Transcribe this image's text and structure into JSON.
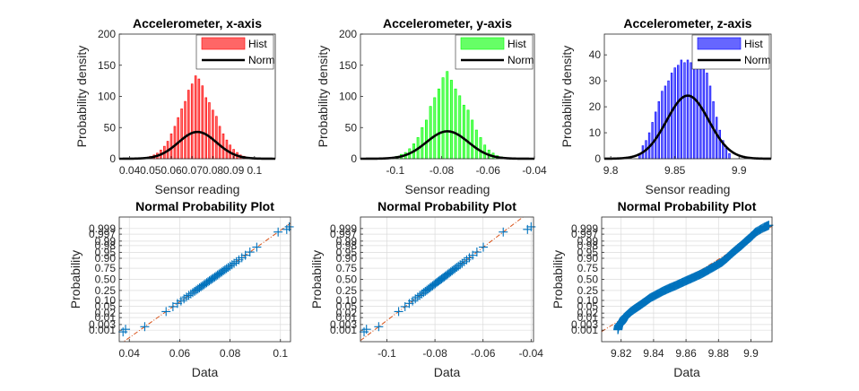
{
  "colors": {
    "x_hist": "#ff0000",
    "y_hist": "#00ff00",
    "z_hist": "#0000ff",
    "norm": "#000000",
    "probplot_marker": "#0072bd",
    "probplot_ref": "#d95319",
    "grid": "#dcdcdc",
    "axes": "#262626"
  },
  "chart_data": [
    {
      "type": "bar",
      "title": "Accelerometer, x-axis",
      "xlabel": "Sensor reading",
      "ylabel": "Probability density",
      "xlim": [
        0.035,
        0.11
      ],
      "ylim": [
        0,
        200
      ],
      "xticks": [
        0.04,
        0.05,
        0.06,
        0.07,
        0.08,
        0.09,
        0.1
      ],
      "xtick_labels": [
        "0.04",
        "0.05",
        "0.06",
        "0.07",
        "0.08",
        "0.09",
        "0.1"
      ],
      "yticks": [
        0,
        50,
        100,
        150,
        200
      ],
      "ytick_labels": [
        "0",
        "50",
        "100",
        "150",
        "200"
      ],
      "grid": false,
      "legend": {
        "placement": "top-right",
        "entries": [
          "Hist",
          "Norm"
        ]
      },
      "hist": {
        "bin_width": 0.00167,
        "centers": [
          0.05,
          0.0517,
          0.0533,
          0.055,
          0.0567,
          0.0583,
          0.06,
          0.0617,
          0.0633,
          0.065,
          0.0667,
          0.0683,
          0.07,
          0.0717,
          0.0733,
          0.075,
          0.0767,
          0.0783,
          0.08,
          0.0817,
          0.0833,
          0.085,
          0.0867,
          0.0883,
          0.09,
          0.0917,
          0.0933,
          0.095,
          0.0967
        ],
        "values": [
          4,
          6,
          9,
          14,
          20,
          28,
          40,
          52,
          66,
          80,
          92,
          110,
          120,
          133,
          128,
          117,
          98,
          90,
          78,
          68,
          52,
          40,
          30,
          22,
          15,
          10,
          6,
          4,
          2
        ]
      },
      "norm": {
        "mean": 0.0726,
        "sd": 0.0092,
        "peak": 43
      }
    },
    {
      "type": "bar",
      "title": "Accelerometer, y-axis",
      "xlabel": "Sensor reading",
      "ylabel": "Probability density",
      "xlim": [
        -0.115,
        -0.04
      ],
      "ylim": [
        0,
        200
      ],
      "xticks": [
        -0.1,
        -0.08,
        -0.06,
        -0.04
      ],
      "xtick_labels": [
        "-0.1",
        "-0.08",
        "-0.06",
        "-0.04"
      ],
      "yticks": [
        0,
        50,
        100,
        150,
        200
      ],
      "ytick_labels": [
        "0",
        "50",
        "100",
        "150",
        "200"
      ],
      "grid": false,
      "legend": {
        "placement": "top-right",
        "entries": [
          "Hist",
          "Norm"
        ]
      },
      "hist": {
        "bin_width": 0.0018,
        "centers": [
          -0.101,
          -0.0992,
          -0.0974,
          -0.0956,
          -0.0938,
          -0.092,
          -0.0902,
          -0.0884,
          -0.0866,
          -0.0848,
          -0.083,
          -0.0812,
          -0.0794,
          -0.0776,
          -0.0758,
          -0.074,
          -0.0722,
          -0.0704,
          -0.0686,
          -0.0668,
          -0.065,
          -0.0632,
          -0.0614,
          -0.0596,
          -0.0578,
          -0.056,
          -0.0542
        ],
        "values": [
          2,
          4,
          7,
          10,
          16,
          24,
          34,
          50,
          62,
          84,
          98,
          112,
          130,
          140,
          126,
          112,
          101,
          86,
          78,
          62,
          46,
          34,
          22,
          14,
          9,
          5,
          3
        ]
      },
      "norm": {
        "mean": -0.0775,
        "sd": 0.009,
        "peak": 44
      }
    },
    {
      "type": "bar",
      "title": "Accelerometer, z-axis",
      "xlabel": "Sensor reading",
      "ylabel": "Probability density",
      "xlim": [
        9.795,
        9.925
      ],
      "ylim": [
        0,
        48
      ],
      "xticks": [
        9.8,
        9.85,
        9.9
      ],
      "xtick_labels": [
        "9.8",
        "9.85",
        "9.9"
      ],
      "yticks": [
        0,
        10,
        20,
        30,
        40
      ],
      "ytick_labels": [
        "0",
        "10",
        "20",
        "30",
        "40"
      ],
      "grid": false,
      "legend": {
        "placement": "top-right",
        "entries": [
          "Hist",
          "Norm"
        ]
      },
      "hist": {
        "bin_width": 0.0025,
        "centers": [
          9.8225,
          9.825,
          9.8275,
          9.83,
          9.8325,
          9.835,
          9.8375,
          9.84,
          9.8425,
          9.845,
          9.8475,
          9.85,
          9.8525,
          9.855,
          9.8575,
          9.86,
          9.8625,
          9.865,
          9.8675,
          9.87,
          9.8725,
          9.875,
          9.8775,
          9.88,
          9.8825,
          9.885,
          9.8875,
          9.89,
          9.8925
        ],
        "values": [
          2,
          5,
          7,
          10,
          14,
          18,
          22,
          26,
          28,
          30,
          33,
          35,
          36,
          38,
          37,
          38,
          37,
          39,
          37,
          36,
          35,
          33,
          28,
          22,
          16,
          11,
          7,
          4,
          2
        ]
      },
      "norm": {
        "mean": 9.86,
        "sd": 0.0164,
        "peak": 24.3
      }
    },
    {
      "type": "scatter",
      "title": "Normal Probability Plot",
      "xlabel": "Data",
      "ylabel": "Probability",
      "xlim": [
        0.036,
        0.104
      ],
      "xticks": [
        0.04,
        0.06,
        0.08,
        0.1
      ],
      "xtick_labels": [
        "0.04",
        "0.06",
        "0.08",
        "0.1"
      ],
      "probabilities": [
        0.001,
        0.003,
        0.01,
        0.02,
        0.05,
        0.1,
        0.25,
        0.5,
        0.75,
        0.9,
        0.95,
        0.98,
        0.99,
        0.997,
        0.999
      ],
      "probability_labels": [
        "0.001",
        "0.003",
        "0.01",
        "0.02",
        "0.05",
        "0.10",
        "0.25",
        "0.50",
        "0.75",
        "0.90",
        "0.95",
        "0.98",
        "0.99",
        "0.997",
        "0.999"
      ],
      "grid": true,
      "mean": 0.0726,
      "sd": 0.0092,
      "extremes": [
        0.0375,
        0.0385,
        0.1025,
        0.1035
      ]
    },
    {
      "type": "scatter",
      "title": "Normal Probability Plot",
      "xlabel": "Data",
      "ylabel": "Probability",
      "xlim": [
        -0.111,
        -0.039
      ],
      "xticks": [
        -0.1,
        -0.08,
        -0.06,
        -0.04
      ],
      "xtick_labels": [
        "-0.1",
        "-0.08",
        "-0.06",
        "-0.04"
      ],
      "probabilities": [
        0.001,
        0.003,
        0.01,
        0.02,
        0.05,
        0.1,
        0.25,
        0.5,
        0.75,
        0.9,
        0.95,
        0.98,
        0.99,
        0.997,
        0.999
      ],
      "probability_labels": [
        "0.001",
        "0.003",
        "0.01",
        "0.02",
        "0.05",
        "0.10",
        "0.25",
        "0.50",
        "0.75",
        "0.90",
        "0.95",
        "0.98",
        "0.99",
        "0.997",
        "0.999"
      ],
      "grid": true,
      "mean": -0.0775,
      "sd": 0.009,
      "extremes": [
        -0.1095,
        -0.1085,
        -0.0415,
        -0.04
      ]
    },
    {
      "type": "scatter",
      "title": "Normal Probability Plot",
      "xlabel": "Data",
      "ylabel": "Probability",
      "xlim": [
        9.808,
        9.913
      ],
      "xticks": [
        9.82,
        9.84,
        9.86,
        9.88,
        9.9
      ],
      "xtick_labels": [
        "9.82",
        "9.84",
        "9.86",
        "9.88",
        "9.9"
      ],
      "probabilities": [
        0.001,
        0.003,
        0.01,
        0.02,
        0.05,
        0.1,
        0.25,
        0.5,
        0.75,
        0.9,
        0.95,
        0.98,
        0.99,
        0.997,
        0.999
      ],
      "probability_labels": [
        "0.001",
        "0.003",
        "0.01",
        "0.02",
        "0.05",
        "0.10",
        "0.25",
        "0.50",
        "0.75",
        "0.90",
        "0.95",
        "0.98",
        "0.99",
        "0.997",
        "0.999"
      ],
      "grid": true,
      "mean": 9.86,
      "sd": 0.0164,
      "points": [
        [
          9.818,
          0.0011
        ],
        [
          9.8185,
          0.0025
        ],
        [
          9.82,
          0.004
        ],
        [
          9.821,
          0.006
        ],
        [
          9.822,
          0.01
        ],
        [
          9.824,
          0.016
        ],
        [
          9.826,
          0.025
        ],
        [
          9.829,
          0.04
        ],
        [
          9.832,
          0.06
        ],
        [
          9.835,
          0.09
        ],
        [
          9.838,
          0.13
        ],
        [
          9.842,
          0.18
        ],
        [
          9.846,
          0.24
        ],
        [
          9.85,
          0.3
        ],
        [
          9.854,
          0.36
        ],
        [
          9.858,
          0.43
        ],
        [
          9.862,
          0.5
        ],
        [
          9.866,
          0.57
        ],
        [
          9.87,
          0.64
        ],
        [
          9.874,
          0.72
        ],
        [
          9.878,
          0.79
        ],
        [
          9.882,
          0.85
        ],
        [
          9.885,
          0.9
        ],
        [
          9.888,
          0.94
        ],
        [
          9.891,
          0.965
        ],
        [
          9.894,
          0.98
        ],
        [
          9.897,
          0.99
        ],
        [
          9.9,
          0.995
        ],
        [
          9.903,
          0.998
        ],
        [
          9.908,
          0.9992
        ],
        [
          9.911,
          0.9995
        ]
      ]
    }
  ]
}
